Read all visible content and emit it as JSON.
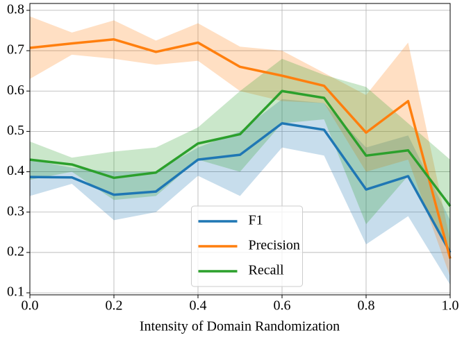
{
  "chart_data": {
    "type": "line",
    "xlabel": "Intensity of Domain Randomization",
    "x": [
      0,
      0.1,
      0.2,
      0.3,
      0.4,
      0.5,
      0.6,
      0.7,
      0.8,
      0.9,
      1.0
    ],
    "series": [
      {
        "name": "F1",
        "color": "#1f77b4",
        "values": [
          0.387,
          0.386,
          0.343,
          0.351,
          0.43,
          0.442,
          0.52,
          0.504,
          0.356,
          0.389,
          0.2
        ],
        "upper": [
          0.43,
          0.41,
          0.4,
          0.4,
          0.46,
          0.5,
          0.58,
          0.57,
          0.46,
          0.49,
          0.28
        ],
        "lower": [
          0.34,
          0.37,
          0.28,
          0.3,
          0.39,
          0.34,
          0.46,
          0.44,
          0.22,
          0.29,
          0.12
        ]
      },
      {
        "name": "Precision",
        "color": "#ff7f0e",
        "values": [
          0.707,
          0.718,
          0.728,
          0.697,
          0.72,
          0.66,
          0.638,
          0.613,
          0.497,
          0.575,
          0.185
        ],
        "upper": [
          0.785,
          0.745,
          0.775,
          0.725,
          0.768,
          0.71,
          0.7,
          0.645,
          0.59,
          0.72,
          0.23
        ],
        "lower": [
          0.63,
          0.69,
          0.68,
          0.665,
          0.675,
          0.6,
          0.575,
          0.57,
          0.4,
          0.43,
          0.14
        ]
      },
      {
        "name": "Recall",
        "color": "#2ca02c",
        "values": [
          0.43,
          0.418,
          0.385,
          0.398,
          0.47,
          0.493,
          0.6,
          0.583,
          0.44,
          0.453,
          0.315
        ],
        "upper": [
          0.475,
          0.435,
          0.45,
          0.46,
          0.51,
          0.6,
          0.68,
          0.64,
          0.61,
          0.52,
          0.43
        ],
        "lower": [
          0.38,
          0.4,
          0.33,
          0.34,
          0.43,
          0.4,
          0.52,
          0.53,
          0.27,
          0.39,
          0.2
        ]
      }
    ],
    "xlim": [
      0,
      1
    ],
    "ylim": [
      0.095,
      0.817
    ],
    "xticks": [
      {
        "value": 0,
        "label": "0.0"
      },
      0.2,
      0.4,
      0.6,
      0.8,
      {
        "value": 1,
        "label": "1.0"
      }
    ],
    "yticks": [
      0.1,
      0.2,
      0.3,
      0.4,
      0.5,
      0.6,
      0.7,
      0.8
    ],
    "grid": true,
    "legend": "lower center"
  }
}
